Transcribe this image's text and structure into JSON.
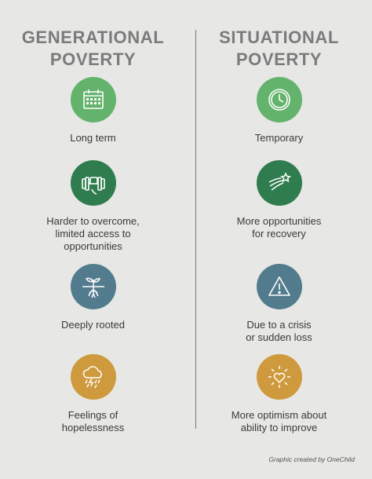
{
  "left": {
    "heading": [
      "GENERATIONAL",
      "POVERTY"
    ],
    "items": [
      {
        "icon": "calendar-icon",
        "color": "#64b36c",
        "lines": [
          "Long term"
        ]
      },
      {
        "icon": "dumbbell-icon",
        "color": "#2f7d4e",
        "lines": [
          "Harder to overcome,",
          "limited access to",
          "opportunities"
        ]
      },
      {
        "icon": "plant-roots-icon",
        "color": "#527c8d",
        "lines": [
          "Deeply rooted"
        ]
      },
      {
        "icon": "storm-cloud-icon",
        "color": "#cf9a3d",
        "lines": [
          "Feelings of",
          "hopelessness"
        ]
      }
    ]
  },
  "right": {
    "heading": [
      "SITUATIONAL",
      "POVERTY"
    ],
    "items": [
      {
        "icon": "clock-icon",
        "color": "#64b36c",
        "lines": [
          "Temporary"
        ]
      },
      {
        "icon": "shooting-star-icon",
        "color": "#2f7d4e",
        "lines": [
          "More opportunities",
          "for recovery"
        ]
      },
      {
        "icon": "warning-icon",
        "color": "#527c8d",
        "lines": [
          "Due to a crisis",
          "or sudden loss"
        ]
      },
      {
        "icon": "heart-sun-icon",
        "color": "#cf9a3d",
        "lines": [
          "More optimism about",
          "ability to improve"
        ]
      }
    ]
  },
  "credit": "Graphic created by OneChild"
}
